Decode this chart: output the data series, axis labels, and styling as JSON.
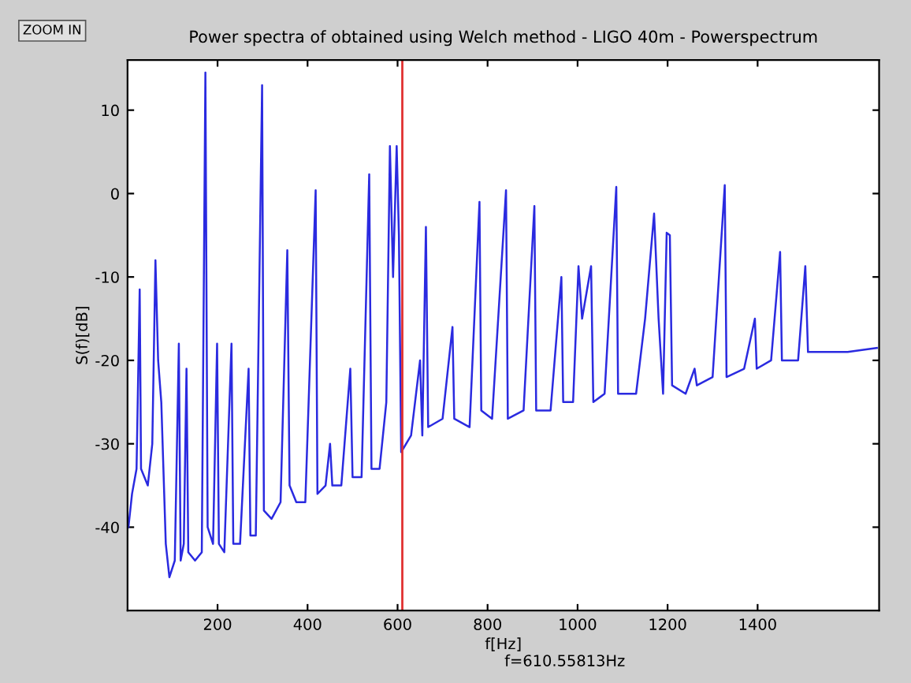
{
  "chart_data": {
    "type": "line",
    "title": "Power spectra of obtained using Welch method - LIGO 40m - Powerspectrum",
    "xlabel": "f[Hz]",
    "ylabel": "S(f)[dB]",
    "annotations": [
      "ZOOM IN",
      "f=610.55813Hz"
    ],
    "x": [
      2,
      10,
      20,
      27,
      30,
      45,
      55,
      62,
      68,
      75,
      85,
      93,
      105,
      114,
      118,
      125,
      131,
      135,
      150,
      165,
      173,
      178,
      190,
      199,
      203,
      215,
      231,
      235,
      250,
      269,
      273,
      285,
      299,
      303,
      320,
      340,
      355,
      360,
      375,
      395,
      418,
      422,
      440,
      450,
      455,
      475,
      495,
      500,
      520,
      537,
      542,
      560,
      575,
      583,
      590,
      598,
      603,
      608,
      630,
      650,
      655,
      663,
      668,
      700,
      722,
      726,
      760,
      782,
      786,
      810,
      841,
      845,
      880,
      904,
      908,
      940,
      964,
      968,
      990,
      1002,
      1010,
      1030,
      1035,
      1060,
      1086,
      1090,
      1130,
      1150,
      1170,
      1180,
      1190,
      1198,
      1205,
      1210,
      1240,
      1260,
      1265,
      1300,
      1327,
      1331,
      1370,
      1394,
      1398,
      1430,
      1450,
      1454,
      1490,
      1506,
      1512,
      1550,
      1600,
      1665
    ],
    "series": [
      {
        "color": "#2a2ae0",
        "values": [
          -40,
          -36,
          -33,
          -11.5,
          -33,
          -35,
          -30,
          -8,
          -20,
          -25,
          -42,
          -46,
          -44,
          -18,
          -44,
          -42,
          -21,
          -43,
          -44,
          -43,
          14.5,
          -40,
          -42,
          -18,
          -42,
          -43,
          -18,
          -42,
          -42,
          -21,
          -41,
          -41,
          13,
          -38,
          -39,
          -37,
          -6.8,
          -35,
          -37,
          -37,
          0.4,
          -36,
          -35,
          -30,
          -35,
          -35,
          -21,
          -34,
          -34,
          2.3,
          -33,
          -33,
          -25,
          5.7,
          -10,
          5.7,
          -5,
          -31,
          -29,
          -20,
          -29,
          -4,
          -28,
          -27,
          -16,
          -27,
          -28,
          -1,
          -26,
          -27,
          0.4,
          -27,
          -26,
          -1.5,
          -26,
          -26,
          -10,
          -25,
          -25,
          -8.7,
          -15,
          -8.7,
          -25,
          -24,
          0.8,
          -24,
          -24,
          -15,
          -2.4,
          -15,
          -24,
          -4.7,
          -5,
          -23,
          -24,
          -21,
          -23,
          -22,
          1,
          -22,
          -21,
          -15,
          -21,
          -20,
          -7,
          -20,
          -20,
          -8.7,
          -19,
          -19,
          -19,
          -18.5
        ]
      }
    ],
    "xlim": [
      0,
      1670
    ],
    "ylim": [
      -50,
      16
    ],
    "xticks": [
      200,
      400,
      600,
      800,
      1000,
      1200,
      1400
    ],
    "yticks": [
      -40,
      -30,
      -20,
      -10,
      0,
      10
    ],
    "ref_lines": [
      {
        "axis": "x",
        "value": 610.55813,
        "color": "#e03030"
      }
    ],
    "grid": false,
    "legend": false,
    "marker": "none",
    "line_style": "solid"
  }
}
